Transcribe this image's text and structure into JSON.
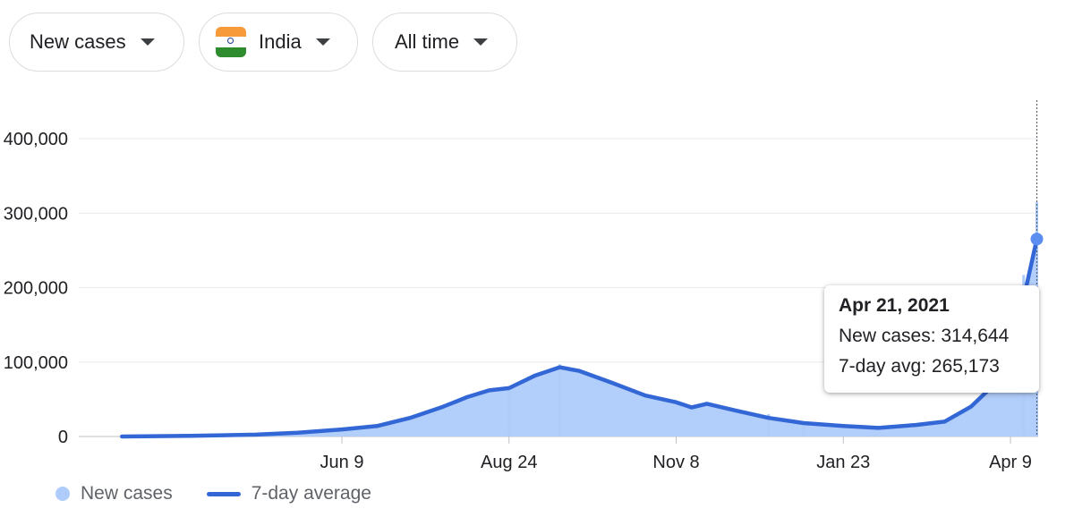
{
  "filters": {
    "metric": "New cases",
    "region": "India",
    "range": "All time"
  },
  "chart_data": {
    "type": "area",
    "title": "",
    "xlabel": "",
    "ylabel": "",
    "ylim": [
      0,
      400000
    ],
    "y_ticks": [
      0,
      100000,
      200000,
      300000,
      400000
    ],
    "y_tick_labels": [
      "0",
      "100,000",
      "200,000",
      "300,000",
      "400,000"
    ],
    "x_tick_labels": [
      "Jun 9",
      "Aug 24",
      "Nov 8",
      "Jan 23",
      "Apr 9"
    ],
    "x_tick_dates": [
      "2020-06-09",
      "2020-08-24",
      "2020-11-08",
      "2021-01-23",
      "2021-04-09"
    ],
    "x_range": [
      "2020-03-01",
      "2021-04-21"
    ],
    "grid": true,
    "colors": {
      "bars": "#aecbfa",
      "line": "#3367d6",
      "grid": "#e8eaed",
      "axis": "#bdc1c6"
    },
    "series": [
      {
        "name": "7-day average",
        "points": [
          [
            "2020-03-01",
            0
          ],
          [
            "2020-04-01",
            800
          ],
          [
            "2020-05-01",
            2500
          ],
          [
            "2020-05-20",
            5000
          ],
          [
            "2020-06-09",
            9500
          ],
          [
            "2020-06-25",
            14000
          ],
          [
            "2020-07-10",
            25000
          ],
          [
            "2020-07-25",
            40000
          ],
          [
            "2020-08-05",
            53000
          ],
          [
            "2020-08-15",
            62000
          ],
          [
            "2020-08-24",
            65000
          ],
          [
            "2020-09-05",
            82000
          ],
          [
            "2020-09-16",
            93000
          ],
          [
            "2020-09-25",
            88000
          ],
          [
            "2020-10-10",
            72000
          ],
          [
            "2020-10-25",
            55000
          ],
          [
            "2020-11-08",
            46000
          ],
          [
            "2020-11-15",
            39000
          ],
          [
            "2020-11-22",
            44000
          ],
          [
            "2020-12-05",
            35000
          ],
          [
            "2020-12-20",
            25000
          ],
          [
            "2021-01-05",
            18000
          ],
          [
            "2021-01-23",
            14000
          ],
          [
            "2021-02-08",
            11500
          ],
          [
            "2021-02-25",
            15500
          ],
          [
            "2021-03-10",
            20000
          ],
          [
            "2021-03-22",
            40000
          ],
          [
            "2021-04-01",
            68000
          ],
          [
            "2021-04-09",
            112000
          ],
          [
            "2021-04-15",
            185000
          ],
          [
            "2021-04-21",
            265173
          ]
        ]
      },
      {
        "name": "New cases",
        "points": [
          [
            "2020-08-24",
            66000
          ],
          [
            "2020-09-16",
            97000
          ],
          [
            "2020-12-20",
            30000
          ],
          [
            "2021-01-05",
            20000
          ],
          [
            "2021-04-15",
            217000
          ],
          [
            "2021-04-21",
            314644
          ]
        ]
      }
    ],
    "tooltip": {
      "date": "Apr 21, 2021",
      "new_cases": "New cases: 314,644",
      "avg": "7-day avg: 265,173"
    },
    "legend": [
      "New cases",
      "7-day average"
    ],
    "legend_position": "bottom-left"
  }
}
